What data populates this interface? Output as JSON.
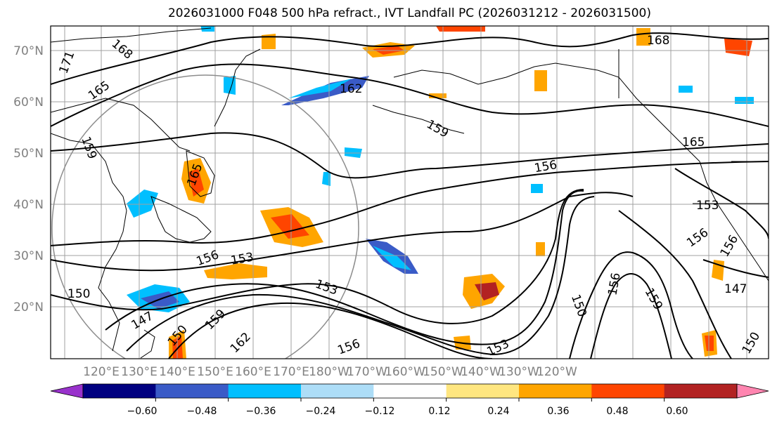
{
  "title": "2026031000 F048 500 hPa refract., IVT Landfall PC (2026031212 - 2026031500)",
  "map": {
    "lat_labels": [
      "70°N",
      "60°N",
      "50°N",
      "40°N",
      "30°N",
      "20°N"
    ],
    "lon_labels": [
      "120°E",
      "130°E",
      "140°E",
      "150°E",
      "160°E",
      "170°E",
      "180°W",
      "170°W",
      "160°W",
      "150°W",
      "140°W",
      "130°W",
      "120°W"
    ],
    "contour_labels": [
      "171",
      "168",
      "168",
      "165",
      "162",
      "159",
      "159",
      "165",
      "165",
      "156",
      "153",
      "156",
      "156",
      "153",
      "150",
      "147",
      "150",
      "159",
      "162",
      "153",
      "156",
      "153",
      "150",
      "156",
      "159",
      "147",
      "150",
      "156"
    ]
  },
  "colorbar": {
    "tick_labels": [
      "−0.60",
      "−0.48",
      "−0.36",
      "−0.24",
      "−0.12",
      "0.12",
      "0.24",
      "0.36",
      "0.48",
      "0.60"
    ],
    "colors": [
      "#9932CC",
      "#000080",
      "#3A5BC7",
      "#00BFFF",
      "#ADDDF7",
      "#FFFFFF",
      "#FFE680",
      "#FFA500",
      "#FF4500",
      "#B22222",
      "#FF85B0"
    ]
  }
}
